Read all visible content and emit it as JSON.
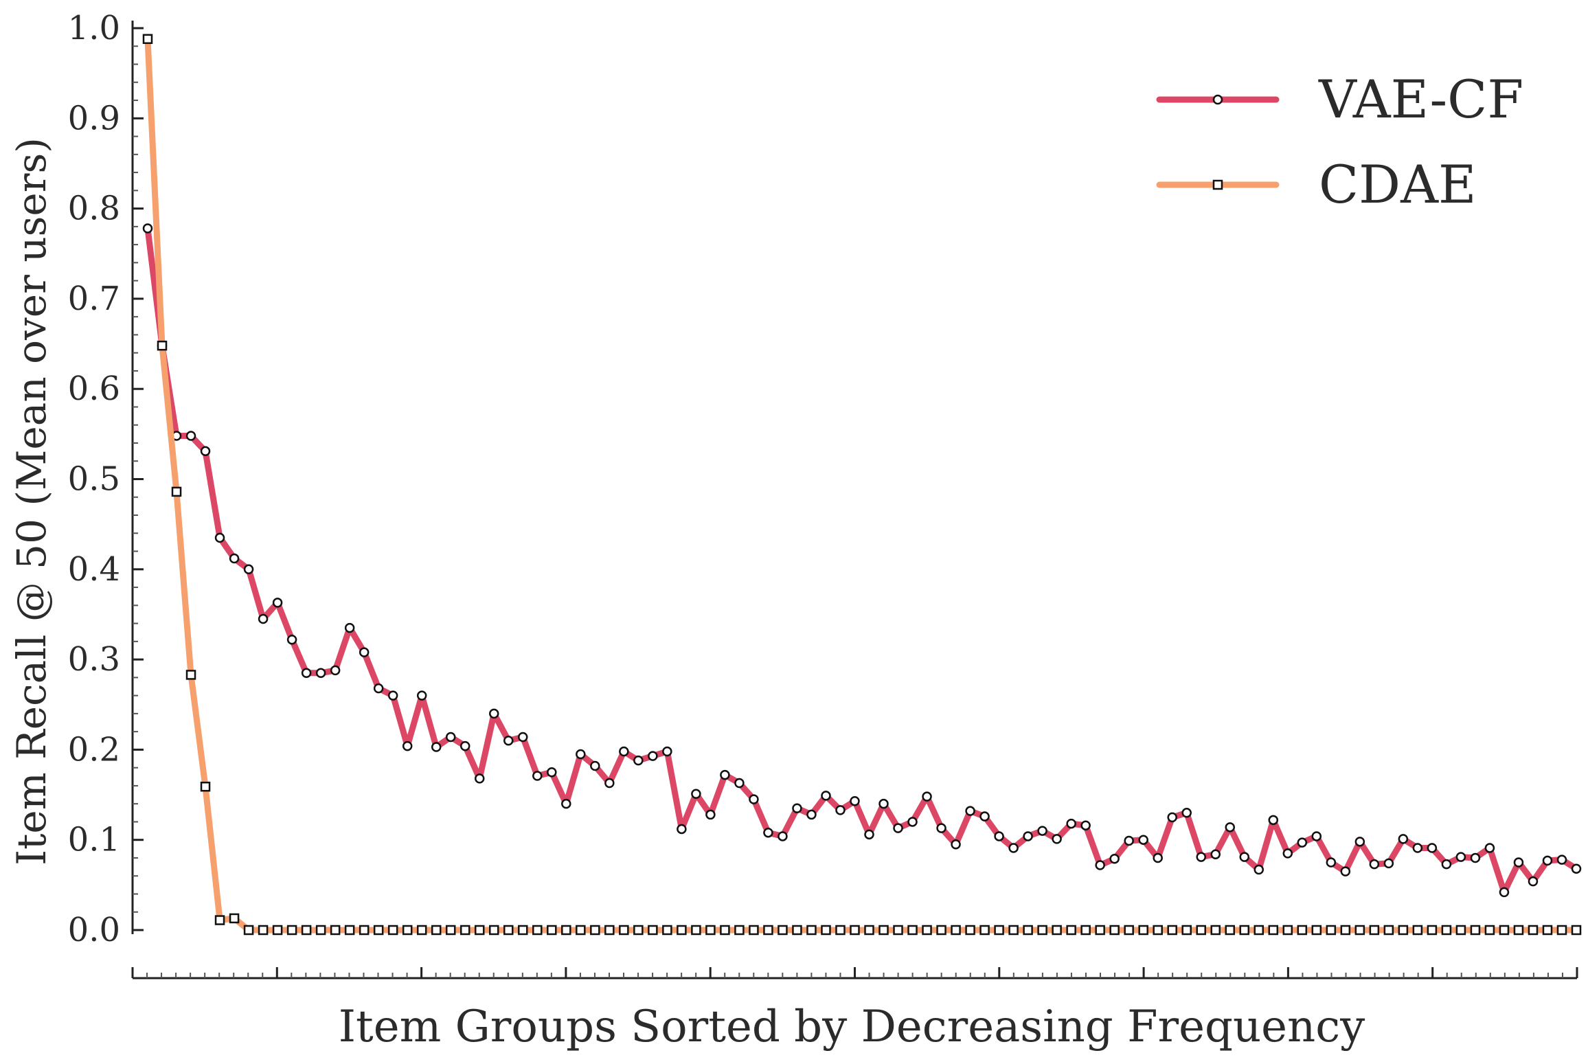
{
  "chart_data": {
    "type": "line",
    "title": "",
    "xlabel": "Item Groups Sorted by Decreasing Frequency",
    "ylabel": "Item Recall @ 50 (Mean over users)",
    "ylim": [
      0,
      1
    ],
    "yticks": [
      "0.0",
      "0.1",
      "0.2",
      "0.3",
      "0.4",
      "0.5",
      "0.6",
      "0.7",
      "0.8",
      "0.9",
      "1.0"
    ],
    "xticks_labeled": false,
    "grid": false,
    "legend": "top-right",
    "x": [
      1,
      2,
      3,
      4,
      5,
      6,
      7,
      8,
      9,
      10,
      11,
      12,
      13,
      14,
      15,
      16,
      17,
      18,
      19,
      20,
      21,
      22,
      23,
      24,
      25,
      26,
      27,
      28,
      29,
      30,
      31,
      32,
      33,
      34,
      35,
      36,
      37,
      38,
      39,
      40,
      41,
      42,
      43,
      44,
      45,
      46,
      47,
      48,
      49,
      50,
      51,
      52,
      53,
      54,
      55,
      56,
      57,
      58,
      59,
      60,
      61,
      62,
      63,
      64,
      65,
      66,
      67,
      68,
      69,
      70,
      71,
      72,
      73,
      74,
      75,
      76,
      77,
      78,
      79,
      80,
      81,
      82,
      83,
      84,
      85,
      86,
      87,
      88,
      89,
      90,
      91,
      92,
      93,
      94,
      95,
      96,
      97,
      98,
      99,
      100
    ],
    "series": [
      {
        "name": "VAE-CF",
        "color": "#dc4766",
        "marker": "circle",
        "values": [
          0.778,
          0.648,
          0.548,
          0.548,
          0.531,
          0.435,
          0.412,
          0.4,
          0.345,
          0.363,
          0.322,
          0.285,
          0.285,
          0.288,
          0.335,
          0.308,
          0.268,
          0.26,
          0.204,
          0.26,
          0.203,
          0.214,
          0.204,
          0.168,
          0.24,
          0.21,
          0.214,
          0.171,
          0.175,
          0.14,
          0.195,
          0.182,
          0.163,
          0.198,
          0.188,
          0.193,
          0.198,
          0.112,
          0.151,
          0.128,
          0.172,
          0.163,
          0.145,
          0.108,
          0.104,
          0.135,
          0.128,
          0.149,
          0.133,
          0.143,
          0.106,
          0.14,
          0.113,
          0.12,
          0.148,
          0.113,
          0.095,
          0.132,
          0.126,
          0.104,
          0.091,
          0.104,
          0.11,
          0.101,
          0.118,
          0.116,
          0.072,
          0.079,
          0.099,
          0.1,
          0.08,
          0.125,
          0.13,
          0.081,
          0.084,
          0.114,
          0.081,
          0.067,
          0.122,
          0.085,
          0.097,
          0.104,
          0.075,
          0.065,
          0.098,
          0.073,
          0.074,
          0.101,
          0.091,
          0.091,
          0.073,
          0.081,
          0.08,
          0.091,
          0.042,
          0.075,
          0.054,
          0.077,
          0.078,
          0.068
        ]
      },
      {
        "name": "CDAE",
        "color": "#f6a06d",
        "marker": "square",
        "values": [
          0.988,
          0.648,
          0.486,
          0.283,
          0.159,
          0.011,
          0.013,
          0,
          0,
          0,
          0,
          0,
          0,
          0,
          0,
          0,
          0,
          0,
          0,
          0,
          0,
          0,
          0,
          0,
          0,
          0,
          0,
          0,
          0,
          0,
          0,
          0,
          0,
          0,
          0,
          0,
          0,
          0,
          0,
          0,
          0,
          0,
          0,
          0,
          0,
          0,
          0,
          0,
          0,
          0,
          0,
          0,
          0,
          0,
          0,
          0,
          0,
          0,
          0,
          0,
          0,
          0,
          0,
          0,
          0,
          0,
          0,
          0,
          0,
          0,
          0,
          0,
          0,
          0,
          0,
          0,
          0,
          0,
          0,
          0,
          0,
          0,
          0,
          0,
          0,
          0,
          0,
          0,
          0,
          0,
          0,
          0,
          0,
          0,
          0,
          0,
          0,
          0,
          0,
          0
        ]
      }
    ]
  }
}
